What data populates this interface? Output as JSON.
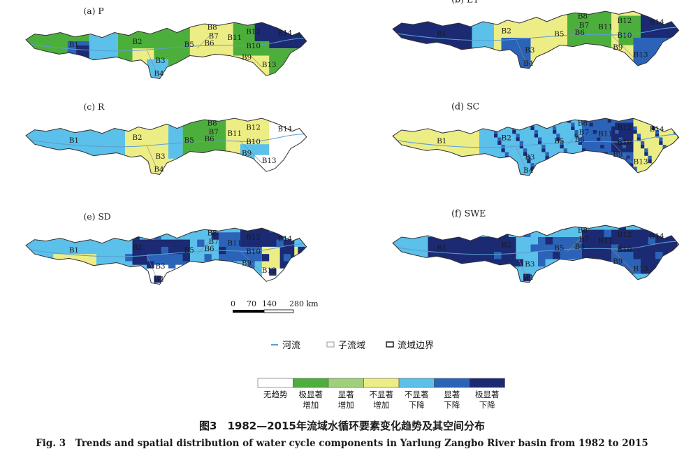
{
  "panels": [
    {
      "label": "(a) P",
      "id": "a"
    },
    {
      "label": "(b) ET",
      "id": "b"
    },
    {
      "label": "(c) R",
      "id": "c"
    },
    {
      "label": "(d) SC",
      "id": "d"
    },
    {
      "label": "(e) SD",
      "id": "e"
    },
    {
      "label": "(f) SWE",
      "id": "f"
    }
  ],
  "subbasins": [
    "B1",
    "B2",
    "B3",
    "B4",
    "B5",
    "B6",
    "B7",
    "B8",
    "B9",
    "B10",
    "B11",
    "B12",
    "B13",
    "B14"
  ],
  "scale_bar": {
    "ticks": [
      "0",
      "70",
      "140",
      "280 km"
    ]
  },
  "map_legend": {
    "river": "河流",
    "subbasin": "子流域",
    "boundary": "流域边界"
  },
  "trend_legend": [
    {
      "label": "无趋势",
      "color": "#ffffff"
    },
    {
      "label": "极显著\n增加",
      "color": "#4caf3c"
    },
    {
      "label": "显著\n增加",
      "color": "#9fd07a"
    },
    {
      "label": "不显著\n增加",
      "color": "#eded86"
    },
    {
      "label": "不显著\n下降",
      "color": "#5bc0ea"
    },
    {
      "label": "显著\n下降",
      "color": "#2b63b8"
    },
    {
      "label": "极显著\n下降",
      "color": "#1b2a72"
    }
  ],
  "caption": {
    "cn": "图3　1982—2015年流域水循环要素变化趋势及其空间分布",
    "en": "Fig. 3　Trends and spatial distribution of water cycle components in Yarlung Zangbo River basin from 1982 to 2015"
  }
}
